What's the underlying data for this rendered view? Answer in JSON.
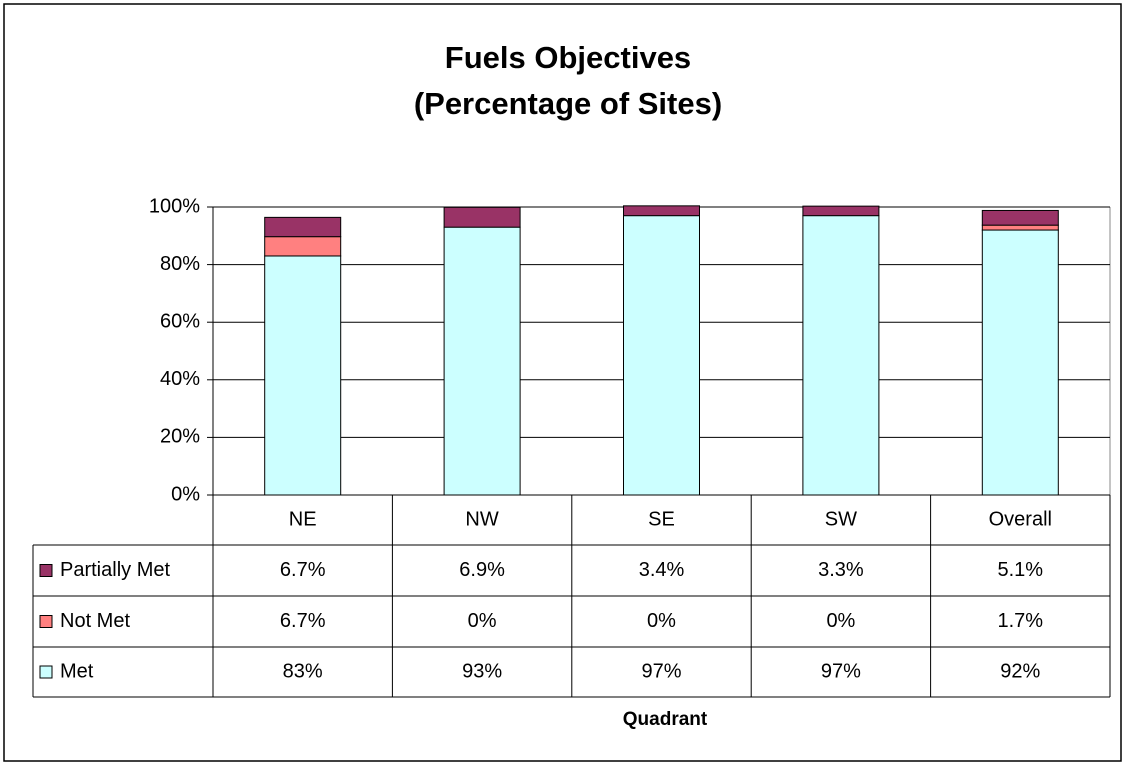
{
  "chart_data": {
    "type": "stacked_bar",
    "title": "Fuels Objectives",
    "subtitle": "(Percentage of Sites)",
    "x_label": "Quadrant",
    "categories": [
      "NE",
      "NW",
      "SE",
      "SW",
      "Overall"
    ],
    "series": [
      {
        "name": "Partially Met",
        "color": "#993366",
        "values": [
          6.7,
          6.9,
          3.4,
          3.3,
          5.1
        ],
        "value_labels": [
          "6.7%",
          "6.9%",
          "3.4%",
          "3.3%",
          "5.1%"
        ]
      },
      {
        "name": "Not Met",
        "color": "#ff8080",
        "values": [
          6.7,
          0,
          0,
          0,
          1.7
        ],
        "value_labels": [
          "6.7%",
          "0%",
          "0%",
          "0%",
          "1.7%"
        ]
      },
      {
        "name": "Met",
        "color": "#ccffff",
        "values": [
          83,
          93,
          97,
          97,
          92
        ],
        "value_labels": [
          "83%",
          "93%",
          "97%",
          "97%",
          "92%"
        ]
      }
    ],
    "ylim": [
      0,
      100
    ],
    "yticks": [
      {
        "value": 0,
        "label": "0%"
      },
      {
        "value": 20,
        "label": "20%"
      },
      {
        "value": 40,
        "label": "40%"
      },
      {
        "value": 60,
        "label": "60%"
      },
      {
        "value": 80,
        "label": "80%"
      },
      {
        "value": 100,
        "label": "100%"
      }
    ],
    "grid": true
  }
}
